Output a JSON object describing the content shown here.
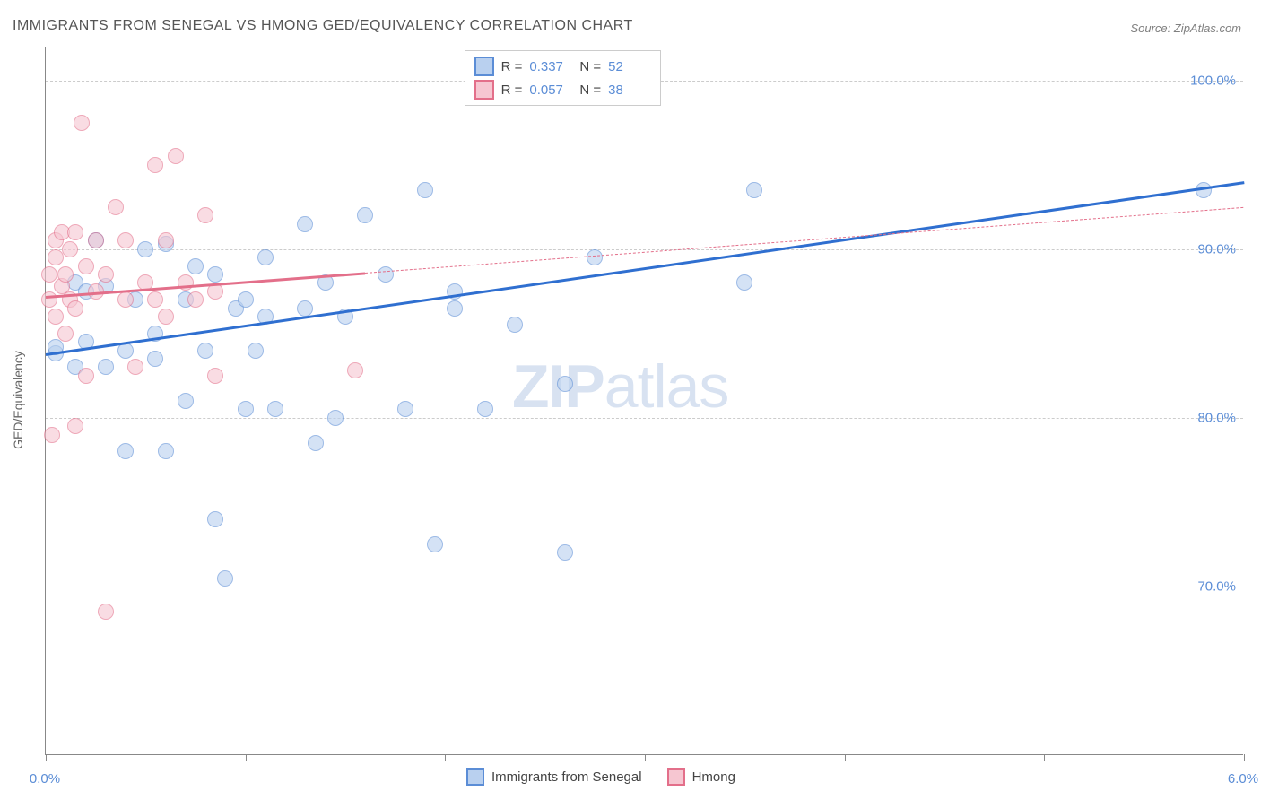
{
  "title": "IMMIGRANTS FROM SENEGAL VS HMONG GED/EQUIVALENCY CORRELATION CHART",
  "source": "Source: ZipAtlas.com",
  "watermark_zip": "ZIP",
  "watermark_atlas": "atlas",
  "ylabel": "GED/Equivalency",
  "chart": {
    "type": "scatter",
    "xlim": [
      0.0,
      6.0
    ],
    "ylim": [
      60.0,
      102.0
    ],
    "y_gridlines": [
      70.0,
      80.0,
      90.0,
      100.0
    ],
    "y_tick_labels": [
      "70.0%",
      "80.0%",
      "90.0%",
      "100.0%"
    ],
    "x_ticks": [
      0.0,
      1.0,
      2.0,
      3.0,
      4.0,
      5.0,
      6.0
    ],
    "x_tick_labels": {
      "0.0": "0.0%",
      "6.0": "6.0%"
    },
    "background_color": "#ffffff",
    "grid_color": "#cccccc",
    "axis_color": "#888888"
  },
  "series": [
    {
      "name": "Immigrants from Senegal",
      "fill": "#b9d0ef",
      "stroke": "#5b8dd6",
      "R": "0.337",
      "N": "52",
      "trend": {
        "x0": 0.0,
        "y0": 83.8,
        "x1": 6.0,
        "y1": 94.0,
        "x_solid_end": 6.0,
        "color": "#2f6fd0"
      },
      "points": [
        [
          0.05,
          83.8
        ],
        [
          0.05,
          84.2
        ],
        [
          0.15,
          88.0
        ],
        [
          0.15,
          83.0
        ],
        [
          0.2,
          84.5
        ],
        [
          0.2,
          87.5
        ],
        [
          0.25,
          90.5
        ],
        [
          0.3,
          83.0
        ],
        [
          0.3,
          87.8
        ],
        [
          0.4,
          78.0
        ],
        [
          0.4,
          84.0
        ],
        [
          0.45,
          87.0
        ],
        [
          0.5,
          90.0
        ],
        [
          0.55,
          83.5
        ],
        [
          0.55,
          85.0
        ],
        [
          0.6,
          78.0
        ],
        [
          0.6,
          90.3
        ],
        [
          0.7,
          81.0
        ],
        [
          0.7,
          87.0
        ],
        [
          0.75,
          89.0
        ],
        [
          0.8,
          84.0
        ],
        [
          0.85,
          74.0
        ],
        [
          0.85,
          88.5
        ],
        [
          0.9,
          70.5
        ],
        [
          0.95,
          86.5
        ],
        [
          1.0,
          80.5
        ],
        [
          1.0,
          87.0
        ],
        [
          1.05,
          84.0
        ],
        [
          1.1,
          89.5
        ],
        [
          1.1,
          86.0
        ],
        [
          1.15,
          80.5
        ],
        [
          1.3,
          91.5
        ],
        [
          1.3,
          86.5
        ],
        [
          1.35,
          78.5
        ],
        [
          1.4,
          88.0
        ],
        [
          1.45,
          80.0
        ],
        [
          1.5,
          86.0
        ],
        [
          1.6,
          92.0
        ],
        [
          1.7,
          88.5
        ],
        [
          1.8,
          80.5
        ],
        [
          1.9,
          93.5
        ],
        [
          1.95,
          72.5
        ],
        [
          2.05,
          86.5
        ],
        [
          2.05,
          87.5
        ],
        [
          2.2,
          80.5
        ],
        [
          2.35,
          85.5
        ],
        [
          2.6,
          72.0
        ],
        [
          2.6,
          82.0
        ],
        [
          2.75,
          89.5
        ],
        [
          3.5,
          88.0
        ],
        [
          3.55,
          93.5
        ],
        [
          5.8,
          93.5
        ]
      ]
    },
    {
      "name": "Hmong",
      "fill": "#f6c6d1",
      "stroke": "#e36f8a",
      "R": "0.057",
      "N": "38",
      "trend": {
        "x0": 0.0,
        "y0": 87.2,
        "x1": 6.0,
        "y1": 92.5,
        "x_solid_end": 1.6,
        "color": "#e36f8a"
      },
      "points": [
        [
          0.02,
          88.5
        ],
        [
          0.02,
          87.0
        ],
        [
          0.03,
          79.0
        ],
        [
          0.05,
          89.5
        ],
        [
          0.05,
          90.5
        ],
        [
          0.05,
          86.0
        ],
        [
          0.08,
          87.8
        ],
        [
          0.08,
          91.0
        ],
        [
          0.1,
          85.0
        ],
        [
          0.1,
          88.5
        ],
        [
          0.12,
          87.0
        ],
        [
          0.12,
          90.0
        ],
        [
          0.15,
          79.5
        ],
        [
          0.15,
          91.0
        ],
        [
          0.15,
          86.5
        ],
        [
          0.18,
          97.5
        ],
        [
          0.2,
          89.0
        ],
        [
          0.2,
          82.5
        ],
        [
          0.25,
          90.5
        ],
        [
          0.25,
          87.5
        ],
        [
          0.3,
          88.5
        ],
        [
          0.3,
          68.5
        ],
        [
          0.35,
          92.5
        ],
        [
          0.4,
          87.0
        ],
        [
          0.4,
          90.5
        ],
        [
          0.45,
          83.0
        ],
        [
          0.5,
          88.0
        ],
        [
          0.55,
          87.0
        ],
        [
          0.55,
          95.0
        ],
        [
          0.6,
          90.5
        ],
        [
          0.6,
          86.0
        ],
        [
          0.65,
          95.5
        ],
        [
          0.7,
          88.0
        ],
        [
          0.75,
          87.0
        ],
        [
          0.8,
          92.0
        ],
        [
          0.85,
          87.5
        ],
        [
          0.85,
          82.5
        ],
        [
          1.55,
          82.8
        ]
      ]
    }
  ],
  "legend_top_pos": {
    "left_pct": 35.0
  },
  "legend_bottom": [
    {
      "label": "Immigrants from Senegal",
      "fill": "#b9d0ef",
      "stroke": "#5b8dd6"
    },
    {
      "label": "Hmong",
      "fill": "#f6c6d1",
      "stroke": "#e36f8a"
    }
  ]
}
